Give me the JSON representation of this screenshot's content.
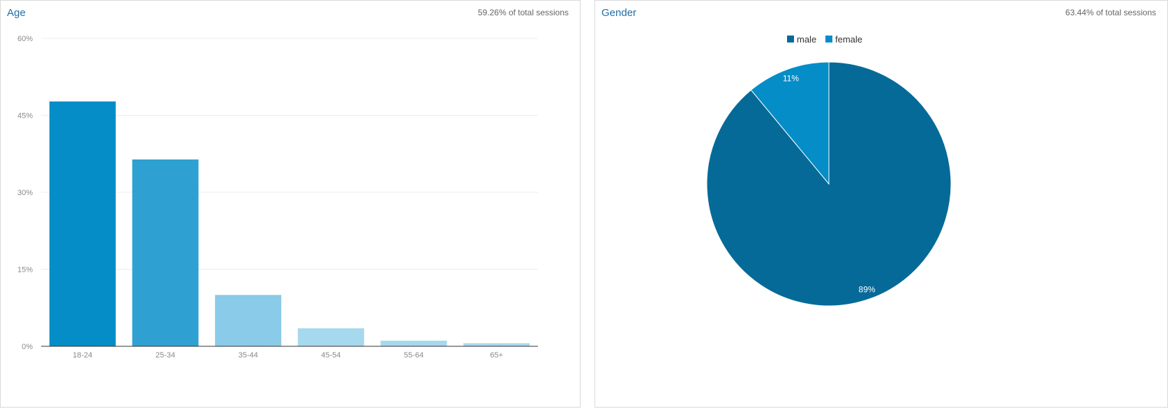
{
  "age_panel": {
    "title": "Age",
    "meta": "59.26% of total sessions"
  },
  "gender_panel": {
    "title": "Gender",
    "meta": "63.44% of total sessions"
  },
  "chart_data": [
    {
      "type": "bar",
      "title": "Age",
      "categories": [
        "18-24",
        "25-34",
        "35-44",
        "45-54",
        "55-64",
        "65+"
      ],
      "values": [
        47.7,
        36.4,
        10.0,
        3.5,
        1.1,
        0.6
      ],
      "ylim": [
        0,
        60
      ],
      "yticks": [
        "0%",
        "15%",
        "30%",
        "45%",
        "60%"
      ],
      "ytick_values": [
        0,
        15,
        30,
        45,
        60
      ],
      "grid": true,
      "colors": [
        "#058dc7",
        "#2ea0d2",
        "#89cbe8",
        "#a6d8ee",
        "#a6d8ee",
        "#a6d8ee"
      ]
    },
    {
      "type": "pie",
      "title": "Gender",
      "labels": [
        "male",
        "female"
      ],
      "values": [
        89,
        11
      ],
      "slice_labels": [
        "89%",
        "11%"
      ],
      "colors": [
        "#056a98",
        "#058dc7"
      ],
      "legend": "top-center"
    }
  ]
}
